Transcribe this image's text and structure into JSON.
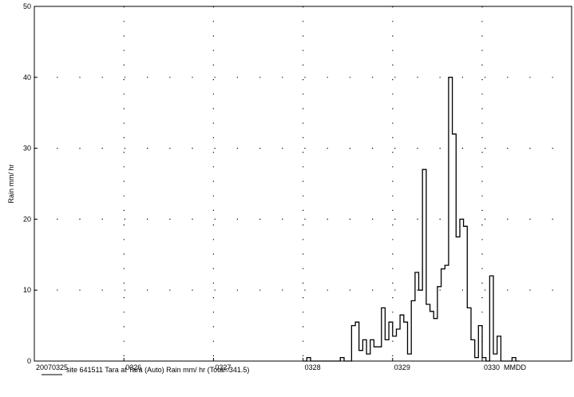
{
  "chart_data": {
    "type": "line",
    "step": true,
    "ylabel": "Rain mm/ hr",
    "xlabel": "MMDD",
    "ylim": [
      0,
      50
    ],
    "yticks": [
      0,
      10,
      20,
      30,
      40,
      50
    ],
    "xlim_days": [
      0,
      5.8
    ],
    "xticks": [
      {
        "day": 0,
        "label": "20070325"
      },
      {
        "day": 1,
        "label": "0326"
      },
      {
        "day": 2,
        "label": "0327"
      },
      {
        "day": 3,
        "label": "0328"
      },
      {
        "day": 4,
        "label": "0329"
      },
      {
        "day": 5,
        "label": "0330"
      }
    ],
    "grid": "dotted",
    "interval_hours": 1,
    "series": [
      {
        "name": "site 641511 Tara at Tara (Auto)   Rain mm/ hr (Total=341.5)",
        "color": "#000000",
        "points": [
          [
            "0328 00:00",
            0
          ],
          [
            "0328 01:00",
            0.5
          ],
          [
            "0328 02:00",
            0
          ],
          [
            "0328 10:00",
            0.5
          ],
          [
            "0328 11:00",
            0
          ],
          [
            "0328 13:00",
            5
          ],
          [
            "0328 14:00",
            5.5
          ],
          [
            "0328 15:00",
            1.5
          ],
          [
            "0328 16:00",
            3
          ],
          [
            "0328 17:00",
            1
          ],
          [
            "0328 18:00",
            3
          ],
          [
            "0328 19:00",
            2
          ],
          [
            "0328 21:00",
            7.5
          ],
          [
            "0328 22:00",
            3
          ],
          [
            "0328 23:00",
            5.5
          ],
          [
            "0329 00:00",
            3.5
          ],
          [
            "0329 01:00",
            4.5
          ],
          [
            "0329 02:00",
            6.5
          ],
          [
            "0329 03:00",
            5.5
          ],
          [
            "0329 04:00",
            1
          ],
          [
            "0329 05:00",
            8.5
          ],
          [
            "0329 06:00",
            12.5
          ],
          [
            "0329 07:00",
            10
          ],
          [
            "0329 08:00",
            27
          ],
          [
            "0329 09:00",
            8
          ],
          [
            "0329 10:00",
            7
          ],
          [
            "0329 11:00",
            6
          ],
          [
            "0329 12:00",
            10.5
          ],
          [
            "0329 13:00",
            13
          ],
          [
            "0329 14:00",
            13.5
          ],
          [
            "0329 15:00",
            40
          ],
          [
            "0329 16:00",
            32
          ],
          [
            "0329 17:00",
            17.5
          ],
          [
            "0329 18:00",
            20
          ],
          [
            "0329 19:00",
            19
          ],
          [
            "0329 20:00",
            7.5
          ],
          [
            "0329 21:00",
            3
          ],
          [
            "0329 22:00",
            0.5
          ],
          [
            "0329 23:00",
            5
          ],
          [
            "0330 00:00",
            0.5
          ],
          [
            "0330 01:00",
            0
          ],
          [
            "0330 02:00",
            12
          ],
          [
            "0330 03:00",
            1
          ],
          [
            "0330 04:00",
            3.5
          ],
          [
            "0330 05:00",
            0
          ],
          [
            "0330 08:00",
            0.5
          ],
          [
            "0330 09:00",
            0
          ]
        ]
      }
    ]
  },
  "footer": {
    "cut_text": ""
  }
}
